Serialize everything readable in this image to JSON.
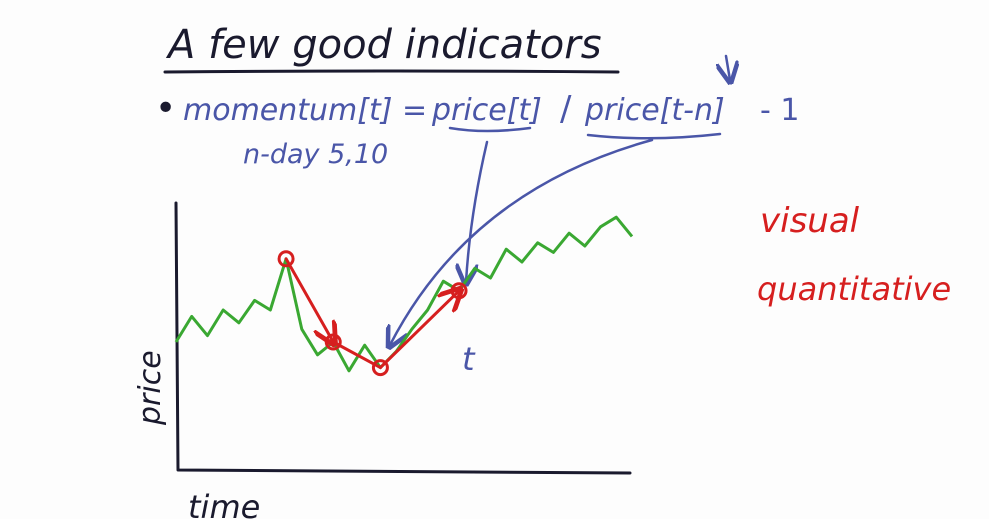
{
  "title": "A few good indicators",
  "formula": {
    "bullet": "•",
    "lhs": "momentum[t] =",
    "price_t": "price[t]",
    "slash": "/",
    "price_tn": "price[t-n]",
    "minus_one": "- 1",
    "note": "n-day 5,10"
  },
  "side_notes": {
    "line1": "visual",
    "line2": "quantitative"
  },
  "axes": {
    "xlabel": "time",
    "ylabel": "price"
  },
  "annotations": {
    "t_label": "t"
  },
  "colors": {
    "ink_dark": "#1a1a2e",
    "ink_blue": "#4a56a8",
    "ink_red": "#d61f1f",
    "ink_green": "#3aa832"
  },
  "chart_data": {
    "type": "line",
    "series": [
      {
        "x": [
          0,
          1,
          2,
          3,
          4,
          5,
          6,
          7,
          8,
          9,
          10,
          11,
          12,
          13,
          14,
          15,
          16,
          17,
          18,
          19,
          20,
          21,
          22,
          23,
          24,
          25,
          26,
          27,
          28,
          29
        ],
        "values": [
          4.0,
          4.8,
          4.2,
          5.0,
          4.6,
          5.3,
          5.0,
          6.6,
          4.4,
          3.6,
          4.0,
          3.1,
          3.9,
          3.2,
          3.7,
          4.4,
          5.0,
          5.9,
          5.6,
          6.3,
          6.0,
          6.9,
          6.5,
          7.1,
          6.8,
          7.4,
          7.0,
          7.6,
          7.9,
          7.3
        ]
      }
    ],
    "highlighted_points": [
      {
        "x": 7,
        "y": 6.6
      },
      {
        "x": 10,
        "y": 4.0
      },
      {
        "x": 13,
        "y": 3.2
      },
      {
        "x": 18,
        "y": 5.6
      }
    ],
    "ylim": [
      0,
      10
    ],
    "xlim": [
      0,
      29
    ]
  }
}
